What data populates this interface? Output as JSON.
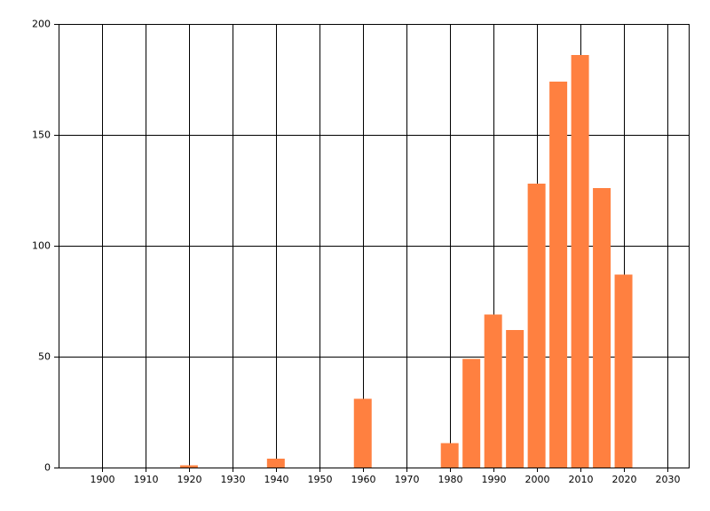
{
  "chart_data": {
    "type": "bar",
    "x": [
      1920,
      1940,
      1960,
      1980,
      1985,
      1990,
      1995,
      2000,
      2005,
      2010,
      2015,
      2020
    ],
    "values": [
      1,
      4,
      31,
      11,
      49,
      69,
      62,
      128,
      174,
      186,
      126,
      87
    ],
    "color": "#ff8040",
    "xlim": [
      1890,
      2035
    ],
    "xticks": [
      1900,
      1910,
      1920,
      1930,
      1940,
      1950,
      1960,
      1970,
      1980,
      1990,
      2000,
      2010,
      2020,
      2030
    ],
    "ylim": [
      0,
      200
    ],
    "yticks": [
      0,
      50,
      100,
      150,
      200
    ],
    "grid": true
  }
}
